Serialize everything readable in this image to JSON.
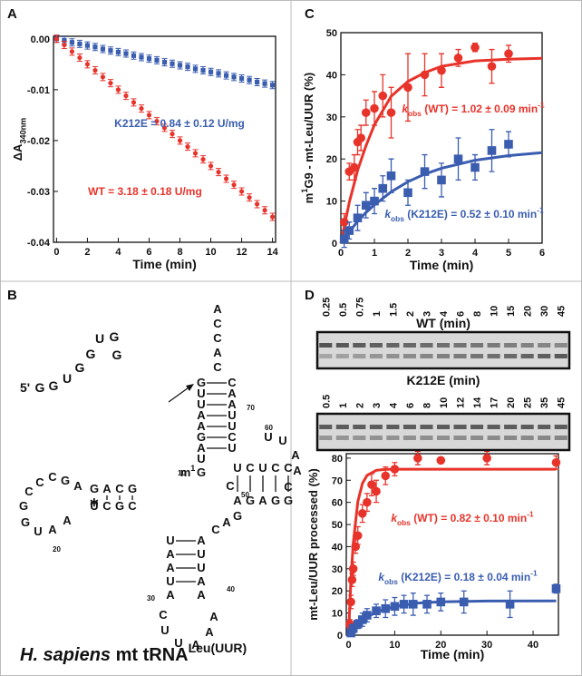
{
  "panel_labels": [
    "A",
    "B",
    "C",
    "D"
  ],
  "chart_data": [
    {
      "type": "scatter",
      "xlabel": [
        {
          "text": "Time (min)"
        }
      ],
      "ylabel": [
        {
          "text": "ΔA"
        },
        {
          "text": "340nm",
          "pos": "sub"
        }
      ],
      "xlim": [
        -0.2,
        14.2
      ],
      "xticks": [
        0,
        2,
        4,
        6,
        8,
        10,
        12,
        14
      ],
      "ylim": [
        -0.04,
        0.0005
      ],
      "yticks": [
        {
          "value": 0,
          "label": "0.00"
        },
        -0.01,
        -0.02,
        -0.03,
        -0.04
      ],
      "series": [
        {
          "color": "#3a5db0",
          "marker": "square",
          "x": [
            0,
            0.5,
            1,
            1.5,
            2,
            2.5,
            3,
            3.5,
            4,
            4.5,
            5,
            5.5,
            6,
            6.5,
            7,
            7.5,
            8,
            8.5,
            9,
            9.5,
            10,
            10.5,
            11,
            11.5,
            12,
            12.5,
            13,
            13.5,
            14
          ],
          "values": [
            0,
            -0.0003,
            -0.0007,
            -0.001,
            -0.0013,
            -0.0016,
            -0.002,
            -0.0023,
            -0.0026,
            -0.0029,
            -0.0033,
            -0.0036,
            -0.0039,
            -0.0042,
            -0.0046,
            -0.0049,
            -0.0052,
            -0.0055,
            -0.0059,
            -0.0062,
            -0.0065,
            -0.0068,
            -0.0072,
            -0.0075,
            -0.0078,
            -0.0081,
            -0.0085,
            -0.0088,
            -0.0091
          ]
        },
        {
          "color": "#e8332a",
          "marker": "circle",
          "x": [
            0,
            0.5,
            1,
            1.5,
            2,
            2.5,
            3,
            3.5,
            4,
            4.5,
            5,
            5.5,
            6,
            6.5,
            7,
            7.5,
            8,
            8.5,
            9,
            9.5,
            10,
            10.5,
            11,
            11.5,
            12,
            12.5,
            13,
            13.5,
            14
          ],
          "values": [
            0,
            -0.0012,
            -0.0025,
            -0.0037,
            -0.005,
            -0.0062,
            -0.0075,
            -0.0087,
            -0.01,
            -0.0112,
            -0.0125,
            -0.0137,
            -0.015,
            -0.0162,
            -0.0175,
            -0.0187,
            -0.02,
            -0.0212,
            -0.0225,
            -0.0237,
            -0.025,
            -0.0262,
            -0.0275,
            -0.0287,
            -0.03,
            -0.0312,
            -0.0325,
            -0.0337,
            -0.035
          ]
        }
      ],
      "annotations": [
        {
          "color": "#3a5db0",
          "parts": [
            {
              "text": "K212E = 0.84 ± 0.12 U/mg"
            }
          ]
        },
        {
          "color": "#e8332a",
          "parts": [
            {
              "text": "WT = 3.18 ± 0.18 U/mg"
            }
          ]
        }
      ]
    },
    {
      "type": "scatter",
      "xlabel": [
        {
          "text": "Time (min)"
        }
      ],
      "ylabel": [
        {
          "text": "m"
        },
        {
          "text": "1",
          "pos": "sup"
        },
        {
          "text": "G9 - mt-Leu/UUR (%)"
        }
      ],
      "xlim": [
        0,
        6
      ],
      "xticks": [
        0,
        1,
        2,
        3,
        4,
        5,
        6
      ],
      "ylim": [
        0,
        50
      ],
      "yticks": [
        0,
        10,
        20,
        30,
        40,
        50
      ],
      "series": [
        {
          "color": "#e8332a",
          "marker": "circle",
          "x": [
            0.1,
            0.25,
            0.4,
            0.5,
            0.6,
            0.75,
            1,
            1.25,
            1.5,
            2,
            2.5,
            3,
            3.5,
            4,
            4.5,
            5
          ],
          "values": [
            5,
            17,
            18,
            24,
            25,
            31,
            32,
            35,
            31,
            37,
            40,
            41,
            44,
            46.5,
            42,
            45
          ],
          "errors": [
            2,
            2,
            3,
            3,
            3,
            3,
            4,
            5,
            6,
            8,
            5,
            4,
            2,
            1,
            4,
            2
          ]
        },
        {
          "color": "#3a5db0",
          "marker": "square",
          "x": [
            0.1,
            0.25,
            0.5,
            0.75,
            1,
            1.25,
            1.5,
            2,
            2.5,
            3,
            3.5,
            4,
            4.5,
            5
          ],
          "values": [
            1,
            3,
            6,
            9,
            10,
            13,
            16,
            12,
            17,
            15,
            20,
            18,
            22,
            23.5
          ],
          "errors": [
            2,
            2,
            3,
            3,
            3,
            3,
            4,
            3,
            4,
            4,
            5,
            3,
            5,
            3
          ]
        }
      ],
      "fits": [
        {
          "color": "#e8332a",
          "x": [
            0,
            0.25,
            0.5,
            0.75,
            1,
            1.5,
            2,
            2.5,
            3,
            4,
            5,
            6
          ],
          "values": [
            0,
            9.7,
            17.3,
            23.2,
            28.1,
            34.9,
            38.4,
            40.5,
            42,
            43.3,
            43.7,
            43.9
          ]
        },
        {
          "color": "#3a5db0",
          "x": [
            0,
            0.25,
            0.5,
            0.75,
            1,
            1.5,
            2,
            2.5,
            3,
            4,
            5,
            6
          ],
          "values": [
            0,
            2.7,
            5.2,
            7.3,
            9.1,
            12.2,
            14.6,
            16.4,
            17.8,
            19.7,
            20.8,
            21.5
          ]
        }
      ],
      "annotations": [
        {
          "color": "#e8332a",
          "parts": [
            {
              "text": "k",
              "style": "italic"
            },
            {
              "text": "obs",
              "pos": "sub"
            },
            {
              "text": " (WT) = 1.02 ± 0.09 min"
            },
            {
              "text": "-1",
              "pos": "sup"
            }
          ]
        },
        {
          "color": "#3a5db0",
          "parts": [
            {
              "text": "k",
              "style": "italic"
            },
            {
              "text": "obs",
              "pos": "sub"
            },
            {
              "text": " (K212E) = 0.52 ± 0.10 min"
            },
            {
              "text": "-1",
              "pos": "sup"
            }
          ]
        }
      ]
    },
    {
      "type": "scatter",
      "xlabel": [
        {
          "text": "Time (min)"
        }
      ],
      "ylabel": [
        {
          "text": "mt-Leu/UUR processed (%)"
        }
      ],
      "xlim": [
        -0.5,
        45.5
      ],
      "xticks": [
        0,
        10,
        20,
        30,
        40
      ],
      "ylim": [
        0,
        82
      ],
      "yticks": [
        0,
        10,
        20,
        30,
        40,
        50,
        60,
        70,
        80
      ],
      "series": [
        {
          "color": "#e8332a",
          "marker": "circle",
          "x": [
            0.25,
            0.5,
            0.75,
            1,
            1.5,
            2,
            3,
            4,
            5,
            6,
            8,
            10,
            15,
            20,
            30,
            45
          ],
          "values": [
            5,
            15,
            25,
            30,
            40,
            45,
            55,
            60,
            68,
            65,
            72,
            75,
            80,
            79,
            80,
            78
          ],
          "errors": [
            2,
            3,
            3,
            3,
            3,
            4,
            4,
            4,
            5,
            5,
            4,
            3,
            3,
            1,
            3,
            3
          ]
        },
        {
          "color": "#3a5db0",
          "marker": "square",
          "x": [
            0.5,
            1,
            2,
            3,
            4,
            6,
            8,
            10,
            12,
            14,
            17,
            20,
            25,
            35,
            45
          ],
          "values": [
            1,
            3,
            5,
            7,
            9,
            11,
            12,
            13,
            14,
            14,
            14,
            15,
            15,
            14,
            21
          ],
          "errors": [
            1,
            2,
            2,
            3,
            3,
            3,
            4,
            4,
            4,
            5,
            4,
            4,
            5,
            6,
            2
          ]
        }
      ],
      "fits": [
        {
          "color": "#e8332a",
          "x": [
            0,
            0.5,
            1,
            2,
            3,
            4,
            6,
            8,
            10,
            20,
            45
          ],
          "values": [
            0,
            25.1,
            41.2,
            60.3,
            68.6,
            72.2,
            74.5,
            74.9,
            75,
            75,
            75
          ]
        },
        {
          "color": "#3a5db0",
          "x": [
            0,
            1,
            2,
            4,
            6,
            8,
            10,
            15,
            20,
            30,
            45
          ],
          "values": [
            0,
            2.6,
            4.8,
            8.1,
            10.4,
            11.9,
            12.9,
            14.5,
            15.1,
            15.4,
            15.5
          ]
        }
      ],
      "annotations": [
        {
          "color": "#e8332a",
          "parts": [
            {
              "text": "k",
              "style": "italic"
            },
            {
              "text": "obs",
              "pos": "sub"
            },
            {
              "text": " (WT) = 0.82 ± 0.10 min"
            },
            {
              "text": "-1",
              "pos": "sup"
            }
          ]
        },
        {
          "color": "#3a5db0",
          "parts": [
            {
              "text": "k",
              "style": "italic"
            },
            {
              "text": "obs",
              "pos": "sub"
            },
            {
              "text": " (K212E) = 0.18 ± 0.04 min"
            },
            {
              "text": "-1",
              "pos": "sup"
            }
          ]
        }
      ]
    }
  ],
  "gels": [
    {
      "title": "WT (min)",
      "lanes": [
        "0.25",
        "0.5",
        "0.75",
        "1",
        "1.5",
        "2",
        "3",
        "4",
        "6",
        "8",
        "10",
        "15",
        "20",
        "30",
        "45"
      ]
    },
    {
      "title": "K212E (min)",
      "lanes": [
        "0.5",
        "1",
        "2",
        "3",
        "4",
        "6",
        "8",
        "10",
        "12",
        "14",
        "17",
        "20",
        "25",
        "35",
        "45"
      ]
    }
  ],
  "trna": {
    "leader": {
      "prime": "5'",
      "letters": [
        "G",
        "G",
        "U",
        "G",
        "G",
        "U",
        "G",
        "G"
      ]
    },
    "groups": {
      "tail": [
        "A",
        "C",
        "C",
        "A",
        "C"
      ],
      "acc_left": [
        "G",
        "U",
        "U",
        "A",
        "A",
        "G",
        "A"
      ],
      "acc_right": [
        "C",
        "A",
        "A",
        "U",
        "U",
        "C",
        "U"
      ],
      "junction": [
        "U",
        "G"
      ],
      "d_top": [
        "G",
        "A",
        "C",
        "G"
      ],
      "d_bottom": [
        "U",
        "C",
        "G",
        "C"
      ],
      "d_loop": [
        "A",
        "G",
        "C",
        "C",
        "C",
        "G",
        "G",
        "U",
        "A",
        "A"
      ],
      "ac_left": [
        "U",
        "A",
        "A",
        "U",
        "A"
      ],
      "ac_right": [
        "A",
        "U",
        "U",
        "A",
        "A"
      ],
      "ac_loop": [
        "C",
        "U",
        "U",
        "A",
        "A",
        "A"
      ],
      "cag": [
        "C",
        "A",
        "G"
      ],
      "t_top": [
        "U",
        "C",
        "U",
        "C",
        "C"
      ],
      "t_bottom": [
        "A",
        "G",
        "A",
        "G",
        "G"
      ],
      "t_var": [
        "C"
      ],
      "t_loop": [
        "U",
        "U",
        "A",
        "A",
        "C"
      ]
    },
    "numbers": [
      "70",
      "60",
      "50",
      "40",
      "30",
      "20",
      "10"
    ],
    "mod": [
      {
        "text": "m"
      },
      {
        "text": "1",
        "pos": "sup"
      }
    ],
    "title": [
      {
        "text": "H. sapiens",
        "style": "italic"
      },
      {
        "text": " mt tRNA"
      },
      {
        "text": "Leu(UUR)",
        "pos": "sup"
      }
    ]
  }
}
